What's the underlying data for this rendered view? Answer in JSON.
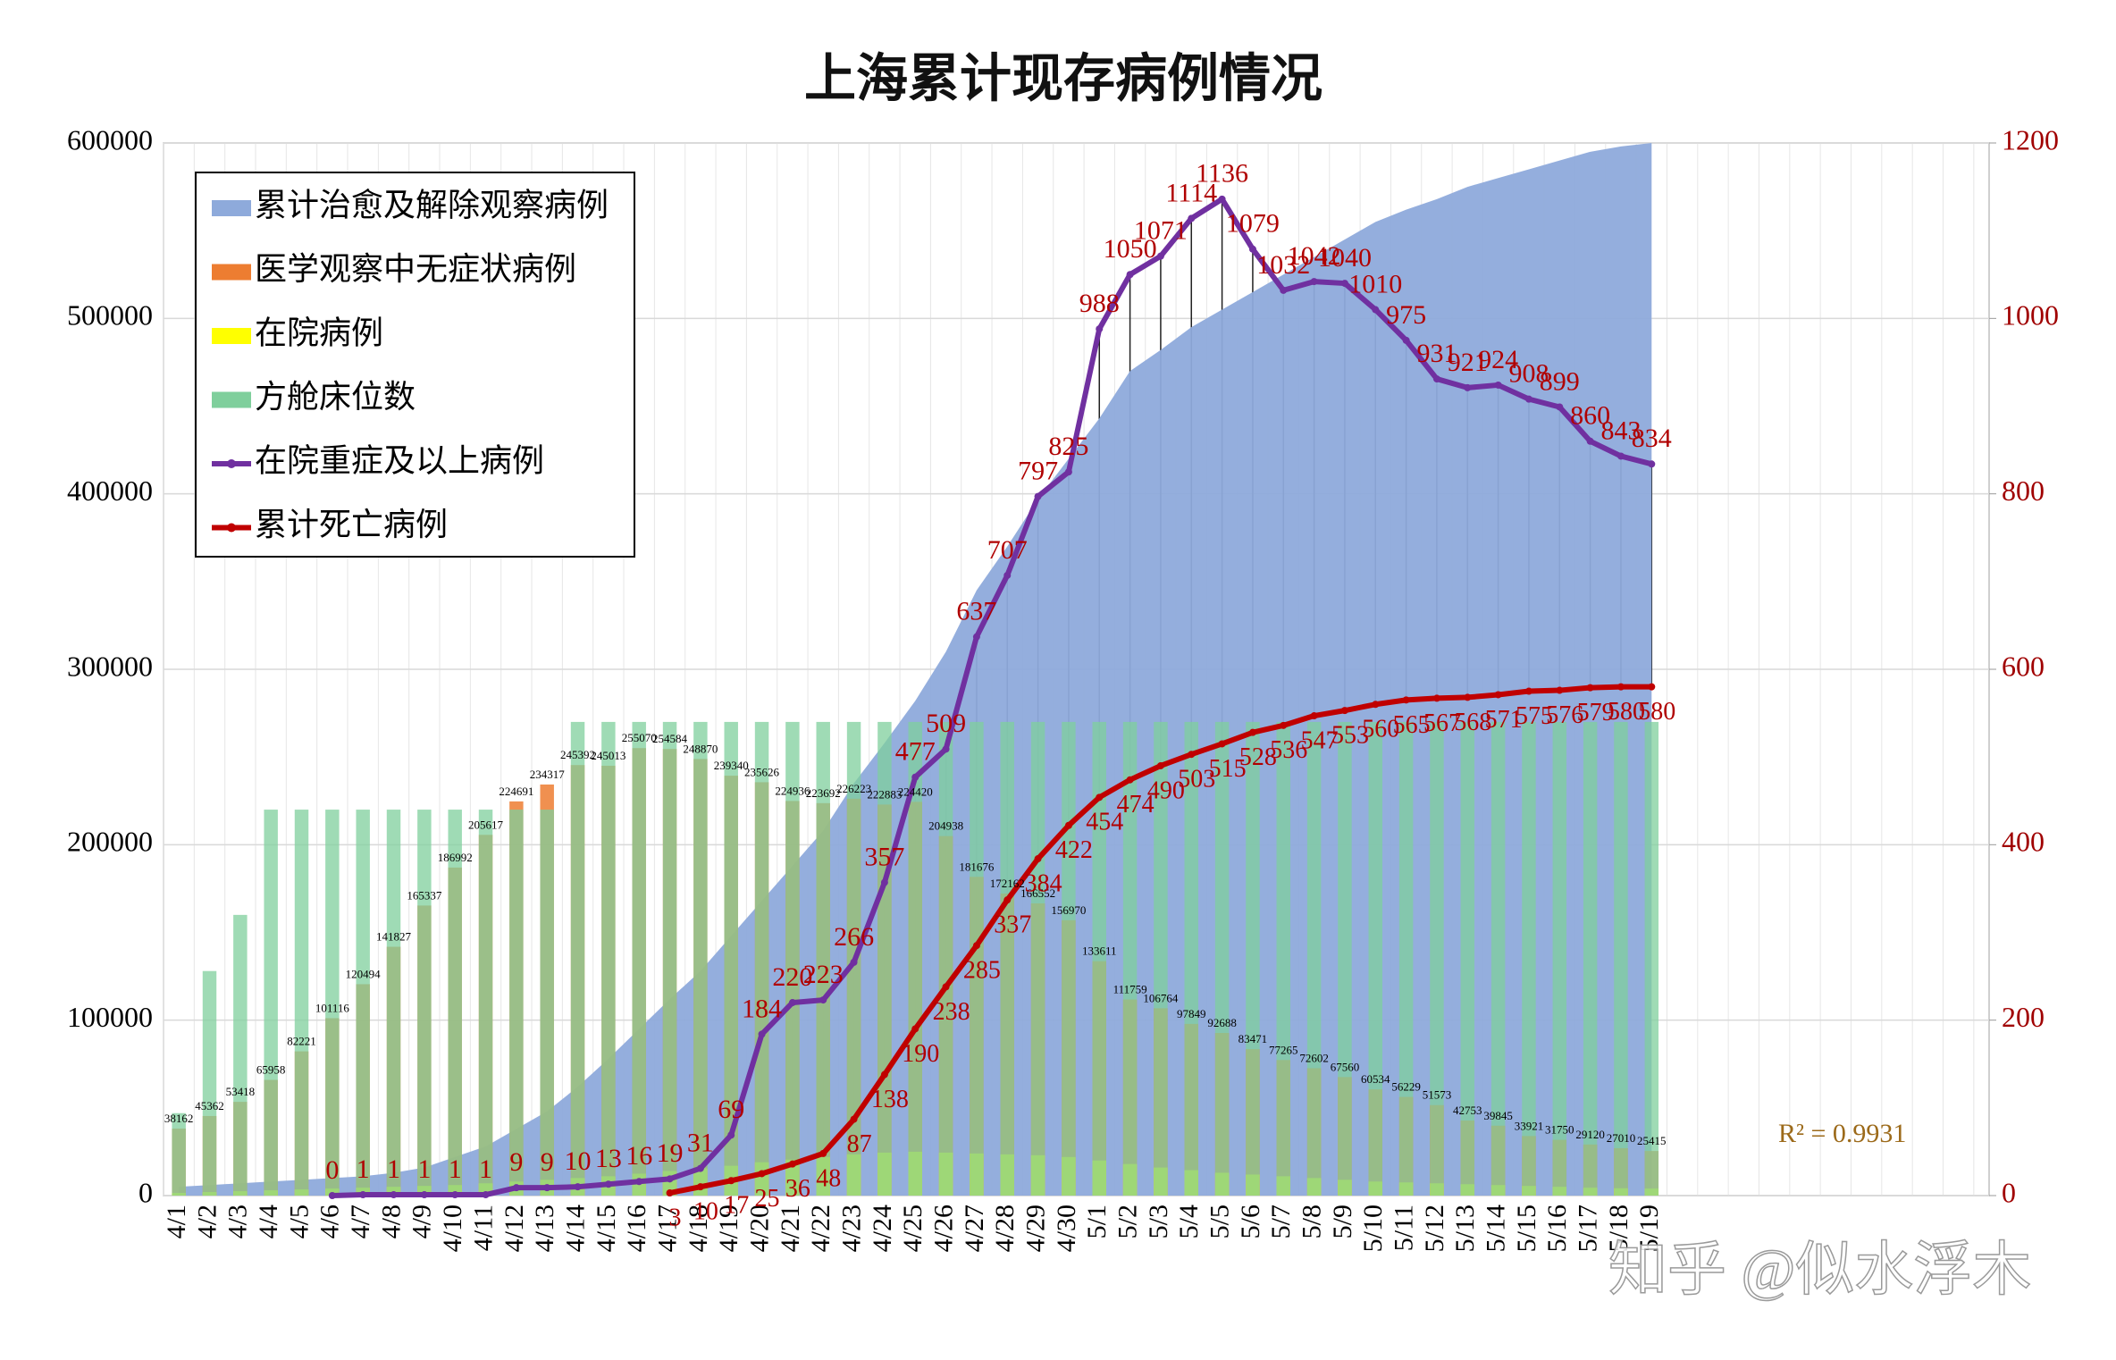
{
  "chart_data": {
    "type": "combo",
    "title": "上海累计现存病例情况",
    "watermark": "知乎 @似水浮木",
    "annotation": "R² = 0.9931",
    "categories": [
      "4/1",
      "4/2",
      "4/3",
      "4/4",
      "4/5",
      "4/6",
      "4/7",
      "4/8",
      "4/9",
      "4/10",
      "4/11",
      "4/12",
      "4/13",
      "4/14",
      "4/15",
      "4/16",
      "4/17",
      "4/18",
      "4/19",
      "4/20",
      "4/21",
      "4/22",
      "4/23",
      "4/24",
      "4/25",
      "4/26",
      "4/27",
      "4/28",
      "4/29",
      "4/30",
      "5/1",
      "5/2",
      "5/3",
      "5/4",
      "5/5",
      "5/6",
      "5/7",
      "5/8",
      "5/9",
      "5/10",
      "5/11",
      "5/12",
      "5/13",
      "5/14",
      "5/15",
      "5/16",
      "5/17",
      "5/18",
      "5/19"
    ],
    "ylim": [
      0,
      600000
    ],
    "yticks": [
      0,
      100000,
      200000,
      300000,
      400000,
      500000,
      600000
    ],
    "y2lim": [
      0,
      1200
    ],
    "y2ticks": [
      0,
      200,
      400,
      600,
      800,
      1000,
      1200
    ],
    "grid": true,
    "legend": "top-left",
    "series": [
      {
        "name": "累计治愈及解除观察病例",
        "type": "area",
        "color": "#8eaadb",
        "values": [
          5000,
          6000,
          7000,
          8000,
          9000,
          10000,
          11000,
          13000,
          16000,
          22000,
          28000,
          38000,
          48000,
          62000,
          78000,
          95000,
          112000,
          128000,
          148000,
          168000,
          188000,
          208000,
          235000,
          258000,
          282000,
          310000,
          345000,
          370000,
          397000,
          420000,
          443000,
          470000,
          482000,
          495000,
          505000,
          515000,
          525000,
          535000,
          545000,
          555000,
          562000,
          568000,
          575000,
          580000,
          585000,
          590000,
          595000,
          598000,
          600000
        ]
      },
      {
        "name": "医学观察中无症状病例",
        "type": "bar",
        "color": "#ed7d31",
        "labels": true,
        "values": [
          38162,
          45362,
          53418,
          65958,
          82221,
          101116,
          120494,
          141827,
          165337,
          186992,
          205617,
          224691,
          234317,
          245392,
          245013,
          255070,
          254584,
          248870,
          239340,
          235626,
          224936,
          223692,
          226223,
          222883,
          224420,
          204938,
          181676,
          172162,
          166552,
          156970,
          133611,
          111759,
          106764,
          97849,
          92688,
          83471,
          77265,
          72602,
          67560,
          60534,
          56229,
          51573,
          42753,
          39845,
          33921,
          31750,
          29120,
          27010,
          25415
        ]
      },
      {
        "name": "在院病例",
        "type": "bar",
        "color": "#ffff00",
        "values": [
          1500,
          2000,
          2500,
          3000,
          3500,
          4000,
          4500,
          5000,
          5500,
          6000,
          7000,
          8000,
          9000,
          10000,
          11000,
          12500,
          14000,
          15500,
          17000,
          19000,
          20500,
          22000,
          23500,
          24500,
          25000,
          24500,
          24000,
          23500,
          23000,
          22000,
          20000,
          18000,
          16000,
          14500,
          13000,
          12000,
          11000,
          10000,
          9000,
          8000,
          7500,
          7000,
          6500,
          6000,
          5500,
          5000,
          4500,
          4200,
          4000
        ]
      },
      {
        "name": "方舱床位数",
        "type": "bar",
        "color": "#7fcf9c",
        "values": [
          47000,
          128000,
          160000,
          220000,
          220000,
          220000,
          220000,
          220000,
          220000,
          220000,
          220000,
          220000,
          220000,
          270000,
          270000,
          270000,
          270000,
          270000,
          270000,
          270000,
          270000,
          270000,
          270000,
          270000,
          270000,
          270000,
          270000,
          270000,
          270000,
          270000,
          270000,
          270000,
          270000,
          270000,
          270000,
          270000,
          270000,
          270000,
          270000,
          270000,
          270000,
          270000,
          270000,
          270000,
          270000,
          270000,
          270000,
          270000,
          270000
        ]
      },
      {
        "name": "在院重症及以上病例",
        "type": "line",
        "axis": "y2",
        "color": "#7030a0",
        "labels": true,
        "values": [
          null,
          null,
          null,
          null,
          null,
          0,
          1,
          1,
          1,
          1,
          1,
          9,
          9,
          10,
          13,
          16,
          19,
          31,
          69,
          184,
          220,
          223,
          266,
          357,
          477,
          509,
          637,
          707,
          797,
          825,
          988,
          1050,
          1071,
          1114,
          1136,
          1079,
          1032,
          1042,
          1040,
          1010,
          975,
          931,
          921,
          924,
          908,
          899,
          860,
          843,
          834
        ]
      },
      {
        "name": "累计死亡病例",
        "type": "line",
        "axis": "y2",
        "color": "#c00000",
        "labels": true,
        "values": [
          null,
          null,
          null,
          null,
          null,
          null,
          null,
          null,
          null,
          null,
          null,
          null,
          null,
          null,
          null,
          null,
          3,
          10,
          17,
          25,
          36,
          48,
          87,
          138,
          190,
          238,
          285,
          337,
          384,
          422,
          454,
          474,
          490,
          503,
          515,
          528,
          536,
          547,
          553,
          560,
          565,
          567,
          568,
          571,
          575,
          576,
          579,
          580,
          580
        ]
      }
    ]
  }
}
